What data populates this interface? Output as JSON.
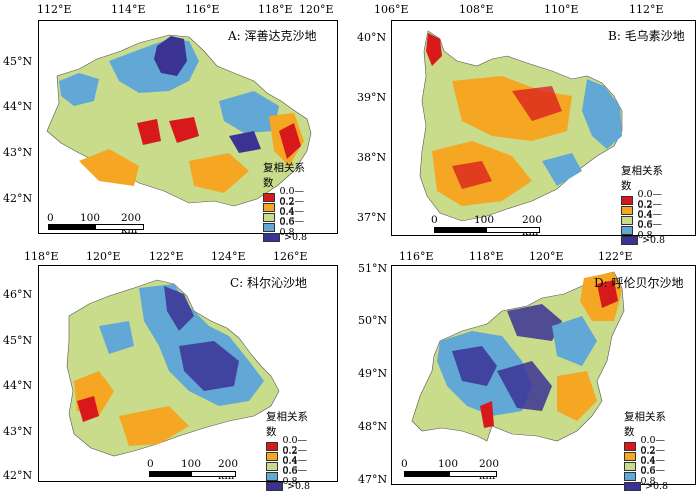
{
  "legend": {
    "title": "复相关系数",
    "classes": [
      {
        "label": "0.0—0.2",
        "color": "#d7191c"
      },
      {
        "label": "0.2—0.4",
        "color": "#f5a623"
      },
      {
        "label": "0.4—0.6",
        "color": "#c8dc8c"
      },
      {
        "label": "0.6—0.8",
        "color": "#62a8d6"
      },
      {
        "label": ">0.8",
        "color": "#3b3394"
      }
    ]
  },
  "panels": [
    {
      "title": "A: 浑善达克沙地",
      "lon_ticks": [
        "112°E",
        "114°E",
        "116°E",
        "118°E",
        "120°E"
      ],
      "lat_ticks": [
        "45°N",
        "44°N",
        "43°N",
        "42°N"
      ],
      "scale": {
        "zero": "0",
        "mid": "100",
        "end": "200 km"
      }
    },
    {
      "title": "B: 毛乌素沙地",
      "lon_ticks": [
        "106°E",
        "108°E",
        "110°E",
        "112°E"
      ],
      "lat_ticks": [
        "40°N",
        "39°N",
        "38°N",
        "37°N"
      ],
      "scale": {
        "zero": "0",
        "mid": "100",
        "end": "200 km"
      }
    },
    {
      "title": "C: 科尔沁沙地",
      "lon_ticks": [
        "118°E",
        "120°E",
        "122°E",
        "124°E",
        "126°E"
      ],
      "lat_ticks": [
        "46°N",
        "45°N",
        "44°N",
        "43°N",
        "42°N"
      ],
      "scale": {
        "zero": "0",
        "mid": "100",
        "end": "200 km"
      }
    },
    {
      "title": "D: 呼伦贝尔沙地",
      "lon_ticks": [
        "116°E",
        "118°E",
        "120°E",
        "122°E"
      ],
      "lat_ticks": [
        "51°N",
        "50°N",
        "49°N",
        "48°N",
        "47°N"
      ],
      "scale": {
        "zero": "0",
        "mid": "100",
        "end": "200 km"
      }
    }
  ]
}
